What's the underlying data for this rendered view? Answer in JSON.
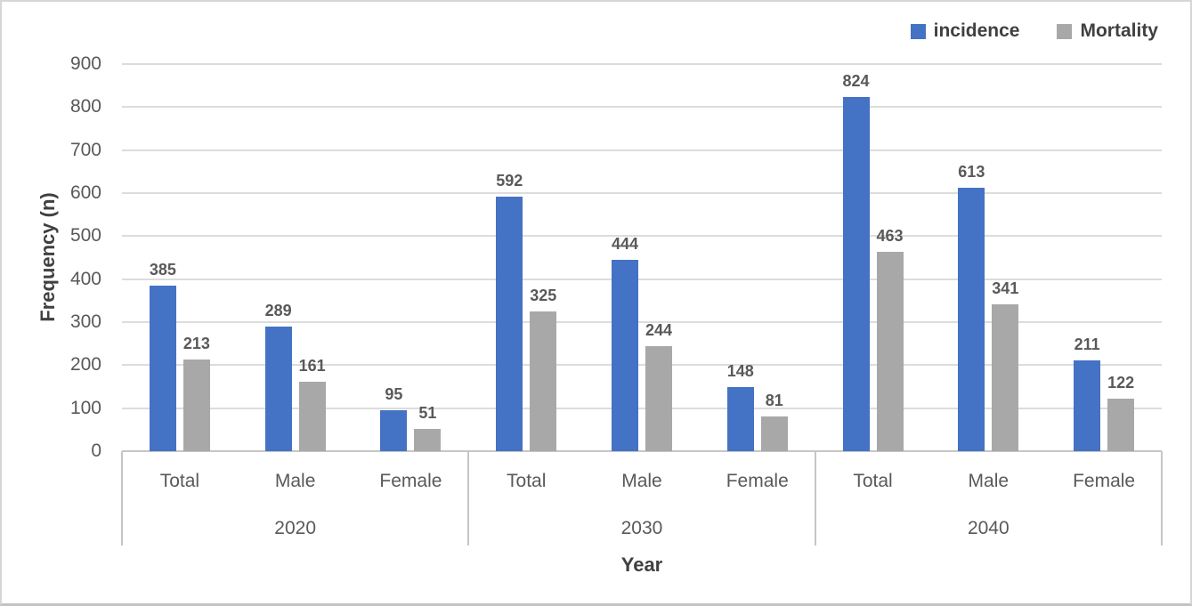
{
  "chart_data": {
    "type": "bar",
    "title": "",
    "xlabel": "Year",
    "ylabel": "Frequency (n)",
    "ylim": [
      0,
      900
    ],
    "ytick_step": 100,
    "yticks": [
      0,
      100,
      200,
      300,
      400,
      500,
      600,
      700,
      800,
      900
    ],
    "grid": "horizontal",
    "legend_position": "top-right",
    "groups": [
      "2020",
      "2030",
      "2040"
    ],
    "categories": [
      "Total",
      "Male",
      "Female"
    ],
    "series": [
      {
        "name": "incidence",
        "color": "#4472C4",
        "values": [
          [
            385,
            289,
            95
          ],
          [
            592,
            444,
            148
          ],
          [
            824,
            613,
            211
          ]
        ]
      },
      {
        "name": "Mortality",
        "color": "#A8A8A8",
        "values": [
          [
            213,
            161,
            51
          ],
          [
            325,
            244,
            81
          ],
          [
            463,
            341,
            122
          ]
        ]
      }
    ]
  }
}
